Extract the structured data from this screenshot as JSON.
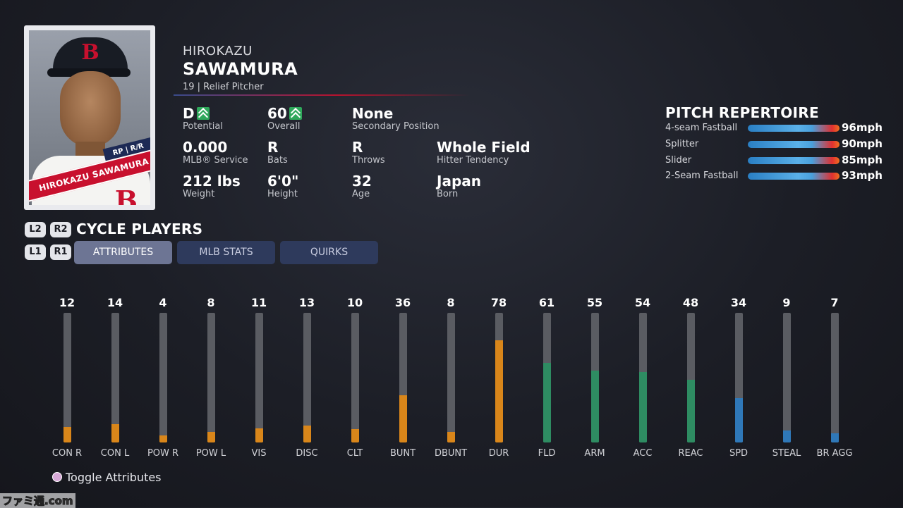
{
  "player": {
    "first_name": "HIROKAZU",
    "last_name": "SAWAMURA",
    "subline": "19 | Relief Pitcher",
    "card_banner": "HIROKAZU SAWAMURA",
    "card_tag": "RP | R/R"
  },
  "stats": [
    {
      "value": "D",
      "label": "Potential",
      "arrow": true
    },
    {
      "value": "60",
      "label": "Overall",
      "arrow": true
    },
    {
      "value": "None",
      "label": "Secondary Position",
      "arrow": false
    },
    {
      "value": "0.000",
      "label": "MLB® Service",
      "arrow": false
    },
    {
      "value": "R",
      "label": "Bats",
      "arrow": false
    },
    {
      "value": "R",
      "label": "Throws",
      "arrow": false
    },
    {
      "value": "Whole Field",
      "label": "Hitter Tendency",
      "arrow": false
    },
    {
      "value": "212 lbs",
      "label": "Weight",
      "arrow": false
    },
    {
      "value": "6'0\"",
      "label": "Height",
      "arrow": false
    },
    {
      "value": "32",
      "label": "Age",
      "arrow": false
    },
    {
      "value": "Japan",
      "label": "Born",
      "arrow": false
    }
  ],
  "pitch_repertoire": {
    "title": "PITCH REPERTOIRE",
    "pitches": [
      {
        "name": "4-seam Fastball",
        "speed": "96mph"
      },
      {
        "name": "Splitter",
        "speed": "90mph"
      },
      {
        "name": "Slider",
        "speed": "85mph"
      },
      {
        "name": "2-Seam Fastball",
        "speed": "93mph"
      }
    ]
  },
  "controls": {
    "l2": "L2",
    "r2": "R2",
    "l1": "L1",
    "r1": "R1",
    "cycle_label": "CYCLE PLAYERS",
    "toggle_label": "Toggle Attributes"
  },
  "tabs": [
    {
      "label": "ATTRIBUTES",
      "active": true
    },
    {
      "label": "MLB STATS",
      "active": false
    },
    {
      "label": "QUIRKS",
      "active": false
    }
  ],
  "colors": {
    "contact": "#d9861a",
    "fielding": "#2e8c62",
    "speed": "#2f78b8",
    "track": "#5a5c62"
  },
  "chart_data": {
    "type": "bar",
    "ylim": [
      0,
      99
    ],
    "categories": [
      "CON R",
      "CON L",
      "POW R",
      "POW L",
      "VIS",
      "DISC",
      "CLT",
      "BUNT",
      "DBUNT",
      "DUR",
      "FLD",
      "ARM",
      "ACC",
      "REAC",
      "SPD",
      "STEAL",
      "BR AGG"
    ],
    "values": [
      12,
      14,
      4,
      8,
      11,
      13,
      10,
      36,
      8,
      78,
      61,
      55,
      54,
      48,
      34,
      9,
      7
    ],
    "groups": [
      "contact",
      "contact",
      "contact",
      "contact",
      "contact",
      "contact",
      "contact",
      "contact",
      "contact",
      "contact",
      "fielding",
      "fielding",
      "fielding",
      "fielding",
      "speed",
      "speed",
      "speed"
    ]
  },
  "watermark": "ファミ通.com"
}
